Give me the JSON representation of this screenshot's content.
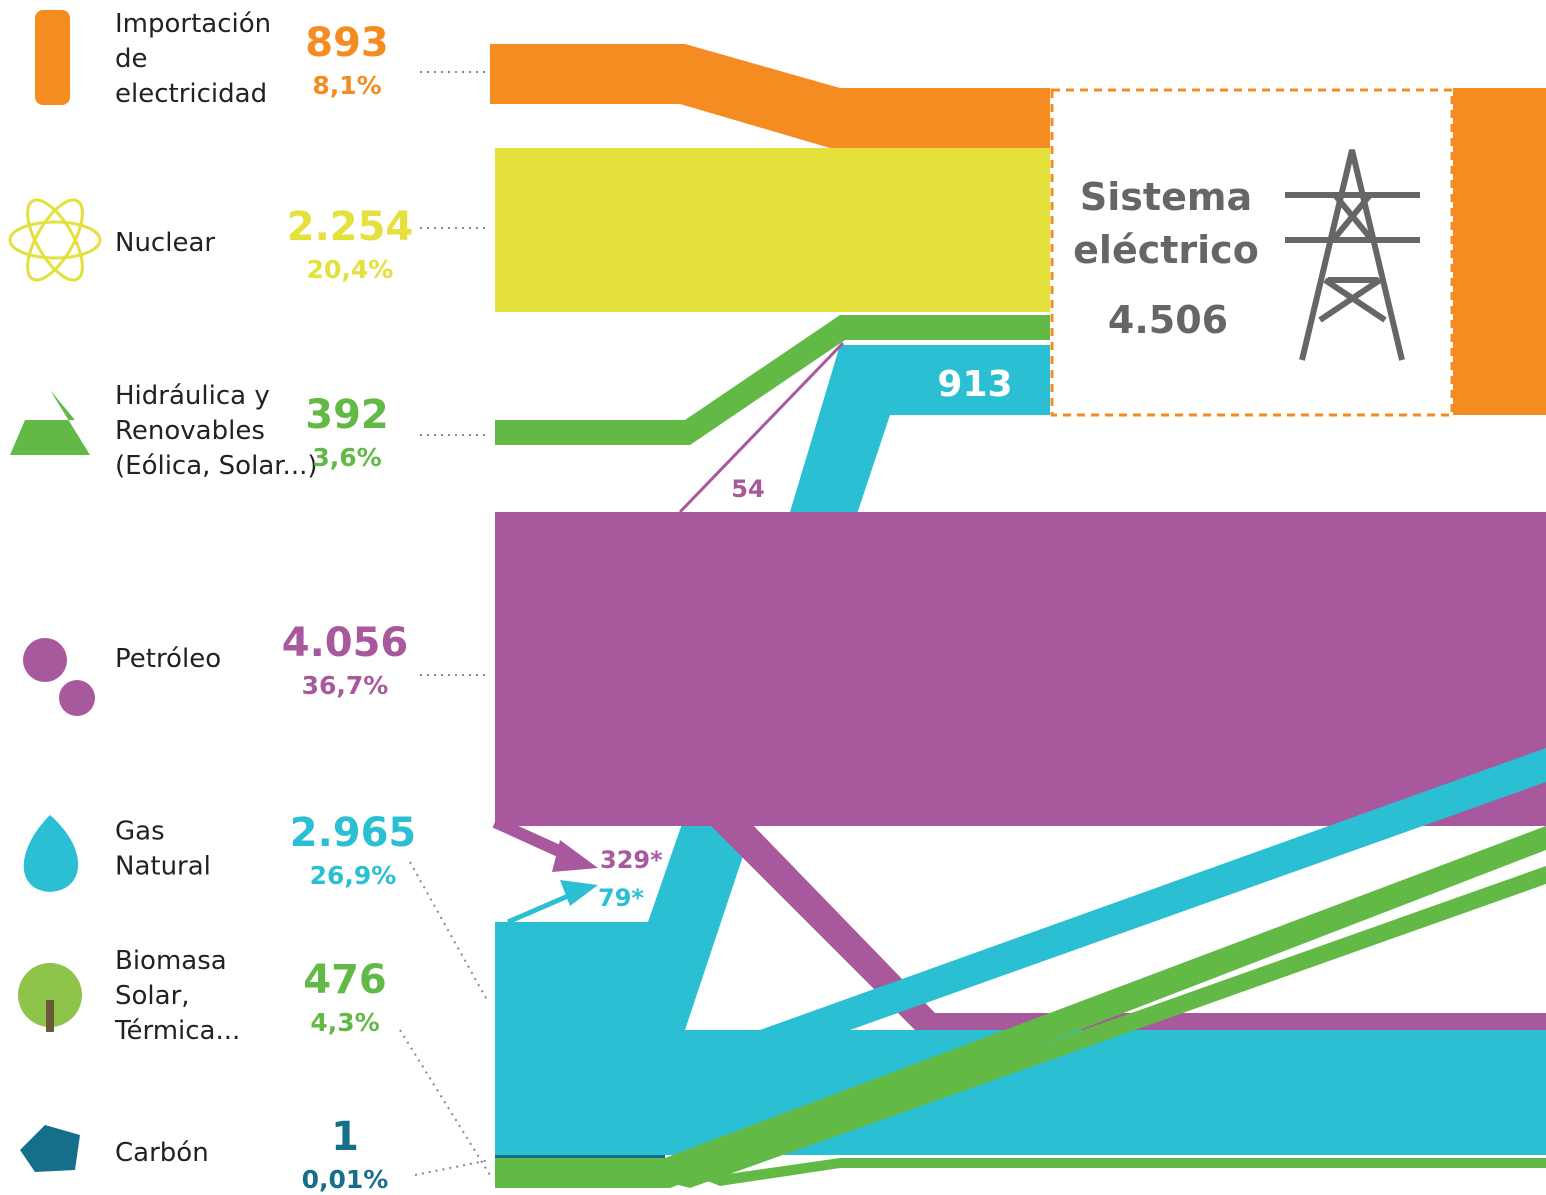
{
  "sources": [
    {
      "name": [
        "Importación",
        "de",
        "electricidad"
      ],
      "value": "893",
      "share": "8,1%",
      "color": "#f48c22"
    },
    {
      "name": [
        "Nuclear"
      ],
      "value": "2.254",
      "share": "20,4%",
      "color": "#e4e03c"
    },
    {
      "name": [
        "Hidráulica y",
        "Renovables",
        "(Eólica, Solar...)"
      ],
      "value": "392",
      "share": "3,6%",
      "color": "#62b946"
    },
    {
      "name": [
        "Petróleo"
      ],
      "value": "4.056",
      "share": "36,7%",
      "color": "#a8589c"
    },
    {
      "name": [
        "Gas",
        "Natural"
      ],
      "value": "2.965",
      "share": "26,9%",
      "color": "#2bbfd4"
    },
    {
      "name": [
        "Biomasa",
        "Solar,",
        "Térmica..."
      ],
      "value": "476",
      "share": "4,3%",
      "color": "#62b946"
    },
    {
      "name": [
        "Carbón"
      ],
      "value": "1",
      "share": "0,01%",
      "color": "#166f8a"
    }
  ],
  "system": {
    "title": [
      "Sistema",
      "eléctrico"
    ],
    "value": "4.506"
  },
  "flows": {
    "gas_to_system": "913",
    "oil_to_system": "54",
    "oil_arrow": "329*",
    "gas_arrow": "79*"
  }
}
